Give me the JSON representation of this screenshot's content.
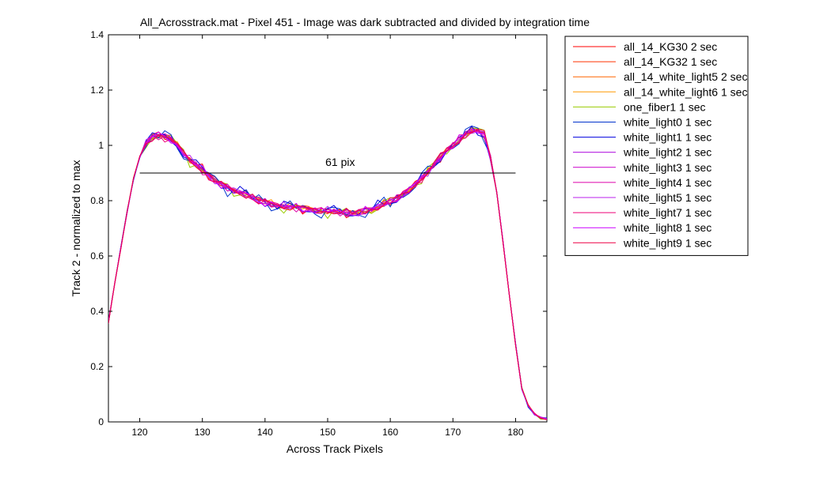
{
  "chart_data": {
    "type": "line",
    "title": "All_Acrosstrack.mat - Pixel 451 - Image was dark subtracted and divided by integration time",
    "xlabel": "Across Track Pixels",
    "ylabel": "Track 2 - normalized to max",
    "xlim": [
      115,
      185
    ],
    "ylim": [
      0,
      1.4
    ],
    "xticks": [
      "120",
      "130",
      "140",
      "150",
      "160",
      "170",
      "180"
    ],
    "yticks": [
      "0",
      "0.2",
      "0.4",
      "0.6",
      "0.8",
      "1",
      "1.2",
      "1.4"
    ],
    "grid": false,
    "legend_position": "outside-top-right",
    "x": [
      115,
      116,
      117,
      118,
      119,
      120,
      121,
      122,
      123,
      124,
      125,
      126,
      127,
      128,
      129,
      130,
      131,
      132,
      133,
      134,
      135,
      136,
      137,
      138,
      139,
      140,
      141,
      142,
      143,
      144,
      145,
      146,
      147,
      148,
      149,
      150,
      151,
      152,
      153,
      154,
      155,
      156,
      157,
      158,
      159,
      160,
      161,
      162,
      163,
      164,
      165,
      166,
      167,
      168,
      169,
      170,
      171,
      172,
      173,
      174,
      175,
      176,
      177,
      178,
      179,
      180,
      181,
      182,
      183,
      184,
      185
    ],
    "base_profile": [
      0.36,
      0.5,
      0.63,
      0.76,
      0.88,
      0.96,
      1.01,
      1.03,
      1.035,
      1.03,
      1.02,
      1.0,
      0.975,
      0.95,
      0.93,
      0.91,
      0.89,
      0.87,
      0.86,
      0.85,
      0.84,
      0.83,
      0.82,
      0.81,
      0.8,
      0.795,
      0.79,
      0.785,
      0.78,
      0.775,
      0.775,
      0.77,
      0.77,
      0.765,
      0.765,
      0.765,
      0.76,
      0.755,
      0.755,
      0.755,
      0.76,
      0.765,
      0.77,
      0.775,
      0.785,
      0.795,
      0.81,
      0.825,
      0.84,
      0.86,
      0.88,
      0.9,
      0.93,
      0.96,
      0.985,
      1.0,
      1.02,
      1.04,
      1.05,
      1.05,
      1.04,
      0.96,
      0.83,
      0.65,
      0.46,
      0.28,
      0.12,
      0.06,
      0.03,
      0.015,
      0.01
    ],
    "series": [
      {
        "name": "all_14_KG30 2 sec",
        "color": "#ff0000",
        "variation": [
          0,
          0.005,
          -0.01,
          0.008,
          0.012
        ]
      },
      {
        "name": "all_14_KG32 1 sec",
        "color": "#ff3300",
        "variation": [
          1,
          0.004,
          0.012,
          -0.006,
          -0.008
        ]
      },
      {
        "name": "all_14_white_light5 2 sec",
        "color": "#ff6600",
        "variation": [
          2,
          -0.003,
          0.009,
          0.011,
          -0.01
        ]
      },
      {
        "name": "all_14_white_light6 1 sec",
        "color": "#ff9900",
        "variation": [
          3,
          0.002,
          -0.008,
          -0.01,
          0.006
        ]
      },
      {
        "name": "one_fiber1 1 sec",
        "color": "#99cc00",
        "variation": [
          4,
          -0.008,
          -0.015,
          0.012,
          0.009
        ]
      },
      {
        "name": "white_light0 1 sec",
        "color": "#0033cc",
        "variation": [
          5,
          -0.012,
          -0.02,
          -0.014,
          0.01
        ]
      },
      {
        "name": "white_light1 1 sec",
        "color": "#0000dd",
        "variation": [
          6,
          0.006,
          -0.016,
          0.009,
          -0.013
        ]
      },
      {
        "name": "white_light2 1 sec",
        "color": "#aa00dd",
        "variation": [
          7,
          0.001,
          0.007,
          -0.012,
          0.007
        ]
      },
      {
        "name": "white_light3 1 sec",
        "color": "#cc00cc",
        "variation": [
          8,
          -0.004,
          0.011,
          0.006,
          -0.006
        ]
      },
      {
        "name": "white_light4 1 sec",
        "color": "#dd00aa",
        "variation": [
          9,
          0.003,
          -0.005,
          0.01,
          0.011
        ]
      },
      {
        "name": "white_light5 1 sec",
        "color": "#bb22ee",
        "variation": [
          10,
          -0.002,
          0.008,
          -0.009,
          -0.011
        ]
      },
      {
        "name": "white_light7 1 sec",
        "color": "#ee0077",
        "variation": [
          11,
          0.007,
          0.006,
          0.005,
          0.008
        ]
      },
      {
        "name": "white_light8 1 sec",
        "color": "#cc00ff",
        "variation": [
          12,
          -0.006,
          -0.009,
          0.013,
          -0.007
        ]
      },
      {
        "name": "white_light9 1 sec",
        "color": "#ee0044",
        "variation": [
          13,
          0.004,
          0.01,
          -0.007,
          0.009
        ]
      }
    ],
    "reference_line": {
      "x_start": 120,
      "x_end": 180,
      "y": 0.9
    },
    "annotation": {
      "text": "61 pix",
      "x": 152,
      "y": 0.92
    }
  }
}
